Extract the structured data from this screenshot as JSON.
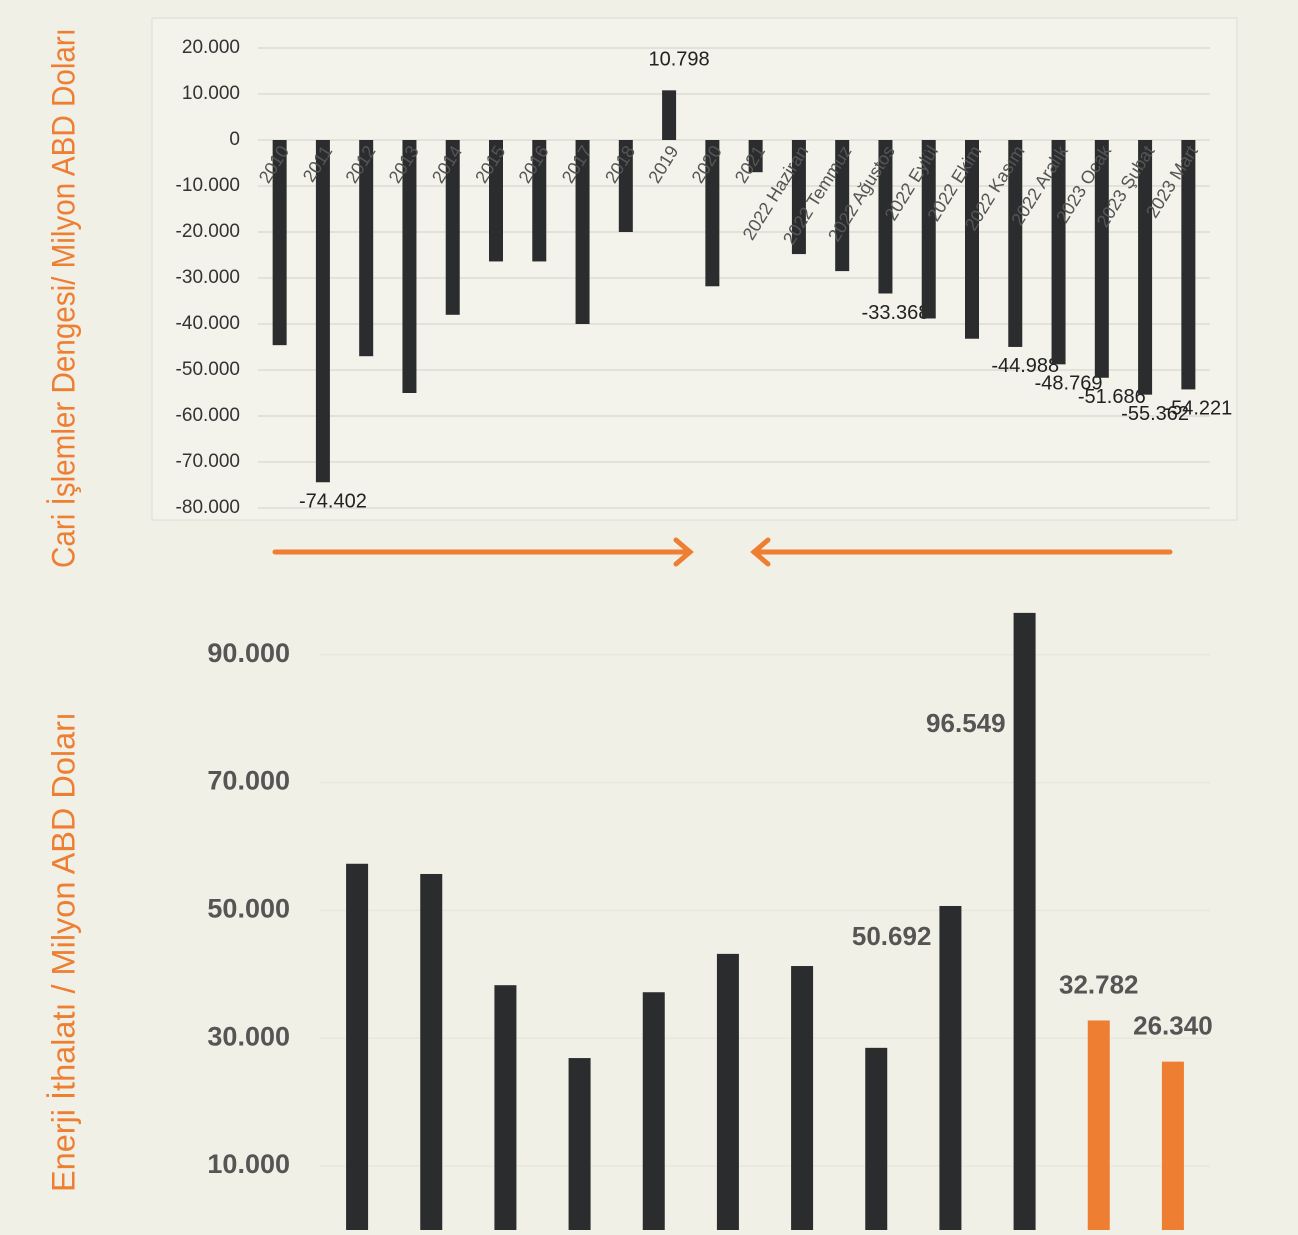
{
  "chart_data": [
    {
      "type": "bar",
      "y_label": "Cari İşlemler Dengesi/ Milyon ABD Doları",
      "categories": [
        "2010",
        "2011",
        "2012",
        "2013",
        "2014",
        "2015",
        "2016",
        "2017",
        "2018",
        "2019",
        "2020",
        "2021",
        "2022 Haziran",
        "2022 Temmuz",
        "2022 Ağustos",
        "2022 Eylül",
        "2022 Ekim",
        "2022 Kasım",
        "2022 Aralık",
        "2023 Ocak",
        "2023 Şubat",
        "2023 Mart"
      ],
      "values": [
        -44600,
        -74402,
        -47000,
        -55000,
        -38000,
        -26400,
        -26400,
        -40000,
        -20000,
        10798,
        -31800,
        -7000,
        -24800,
        -28500,
        -33368,
        -38800,
        -43200,
        -44988,
        -48769,
        -51686,
        -55362,
        -54221
      ],
      "value_labels": [
        null,
        "-74.402",
        null,
        null,
        null,
        null,
        null,
        null,
        null,
        "10.798",
        null,
        null,
        null,
        null,
        "-33.368",
        null,
        null,
        "-44.988",
        "-48.769",
        "-51.686",
        "-55.362",
        "-54.221"
      ],
      "color": "#2b2c2e",
      "ylim": [
        -80000,
        20000
      ],
      "yticks": [
        {
          "value": 20000,
          "label": "20.000"
        },
        {
          "value": 10000,
          "label": "10.000"
        },
        0,
        {
          "value": -10000,
          "label": "-10.000"
        },
        {
          "value": -20000,
          "label": "-20.000"
        },
        {
          "value": -30000,
          "label": "-30.000"
        },
        {
          "value": -40000,
          "label": "-40.000"
        },
        {
          "value": -50000,
          "label": "-50.000"
        },
        {
          "value": -60000,
          "label": "-60.000"
        },
        {
          "value": -70000,
          "label": "-70.000"
        },
        {
          "value": -80000,
          "label": "-80.000"
        }
      ],
      "grid": true
    },
    {
      "type": "bar",
      "y_label": "Enerji İthalatı / Milyon ABD Doları",
      "categories": [
        null,
        null,
        null,
        null,
        null,
        null,
        null,
        null,
        null,
        null,
        null,
        null
      ],
      "values": [
        57300,
        55700,
        38300,
        26900,
        37200,
        43200,
        41300,
        28500,
        50692,
        96549,
        32782,
        26340
      ],
      "value_labels": [
        null,
        null,
        null,
        null,
        null,
        null,
        null,
        null,
        "50.692",
        "96.549",
        "32.782",
        "26.340"
      ],
      "colors": [
        "#2b2c2e",
        "#2b2c2e",
        "#2b2c2e",
        "#2b2c2e",
        "#2b2c2e",
        "#2b2c2e",
        "#2b2c2e",
        "#2b2c2e",
        "#2b2c2e",
        "#2b2c2e",
        "#ee7e32",
        "#ee7e32"
      ],
      "ylim": [
        0,
        97000
      ],
      "yticks": [
        {
          "value": 10000,
          "label": "10.000"
        },
        {
          "value": 30000,
          "label": "30.000"
        },
        {
          "value": 50000,
          "label": "50.000"
        },
        {
          "value": 70000,
          "label": "70.000"
        },
        {
          "value": 90000,
          "label": "90.000"
        }
      ],
      "grid": true
    }
  ]
}
